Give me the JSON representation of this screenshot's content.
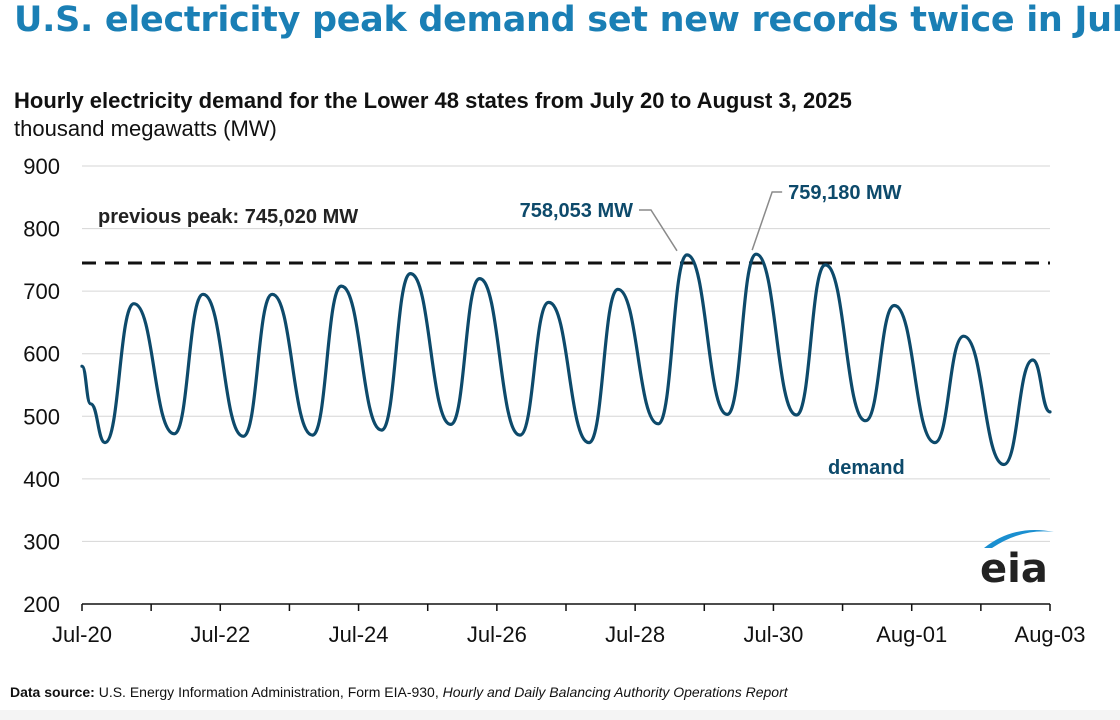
{
  "header": {
    "headline": "U.S. electricity peak demand set new records twice in July"
  },
  "chart_data": {
    "type": "line",
    "title": "Hourly electricity demand for the Lower 48 states from July 20 to August 3, 2025",
    "ylabel": "thousand megawatts (MW)",
    "ylim": [
      200,
      900
    ],
    "yticks": [
      "900",
      "800",
      "700",
      "600",
      "500",
      "400",
      "300",
      "200"
    ],
    "xlim": [
      "2025-07-20",
      "2025-08-03"
    ],
    "xticks": [
      "Jul-20",
      "Jul-22",
      "Jul-24",
      "Jul-26",
      "Jul-28",
      "Jul-30",
      "Aug-01",
      "Aug-03"
    ],
    "grid": true,
    "series": [
      {
        "name": "demand",
        "color": "#0d4a6b",
        "x": [
          "2025-07-20 00:00",
          "2025-07-20 03:00",
          "2025-07-20 08:00",
          "2025-07-20 18:00",
          "2025-07-21 08:00",
          "2025-07-21 18:00",
          "2025-07-22 08:00",
          "2025-07-22 18:00",
          "2025-07-23 08:00",
          "2025-07-23 18:00",
          "2025-07-24 08:00",
          "2025-07-24 18:00",
          "2025-07-25 08:00",
          "2025-07-25 18:00",
          "2025-07-26 08:00",
          "2025-07-26 18:00",
          "2025-07-27 08:00",
          "2025-07-27 18:00",
          "2025-07-28 08:00",
          "2025-07-28 18:00",
          "2025-07-29 08:00",
          "2025-07-29 18:00",
          "2025-07-30 08:00",
          "2025-07-30 18:00",
          "2025-07-31 08:00",
          "2025-07-31 18:00",
          "2025-08-01 08:00",
          "2025-08-01 18:00",
          "2025-08-02 08:00",
          "2025-08-02 18:00",
          "2025-08-03 00:00"
        ],
        "values": [
          580,
          520,
          458,
          680,
          472,
          695,
          468,
          695,
          470,
          708,
          478,
          728,
          487,
          720,
          470,
          682,
          458,
          703,
          488,
          758,
          503,
          759,
          502,
          742,
          493,
          677,
          458,
          628,
          423,
          590,
          507
        ]
      }
    ],
    "reference_line": {
      "value": 745.02,
      "label": "previous peak: 745,020 MW",
      "style": "dashed"
    },
    "annotations": [
      {
        "text": "758,053 MW",
        "x": "2025-07-28 18:00",
        "y": 758.053
      },
      {
        "text": "759,180 MW",
        "x": "2025-07-29 18:00",
        "y": 759.18
      }
    ],
    "series_label": "demand"
  },
  "logo": {
    "text": "eia"
  },
  "source": {
    "label": "Data source:",
    "text": " U.S. Energy Information Administration, Form EIA-930, ",
    "report": "Hourly and Daily Balancing Authority Operations Report"
  }
}
